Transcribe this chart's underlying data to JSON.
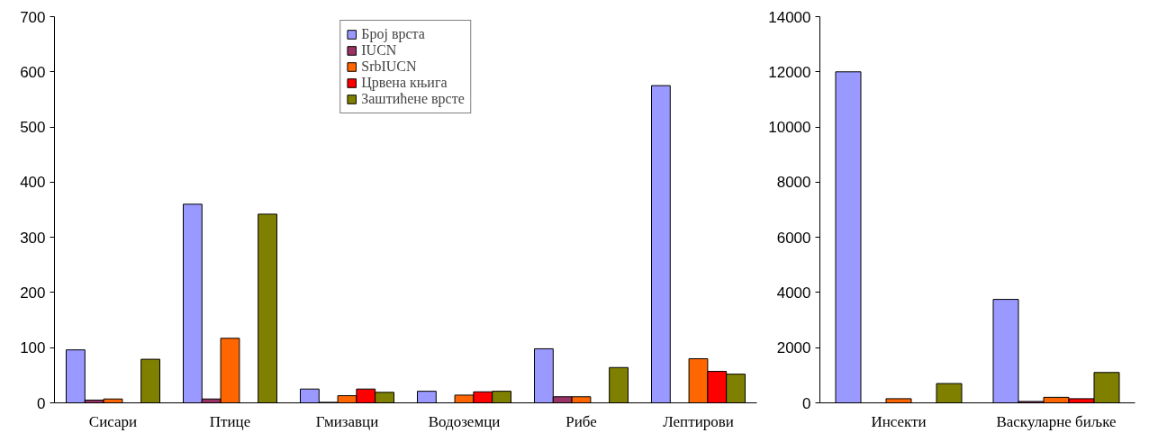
{
  "chart_data": [
    {
      "type": "bar",
      "categories": [
        "Сисари",
        "Птице",
        "Гмизавци",
        "Водоземци",
        "Рибе",
        "Лептирови"
      ],
      "ylim": [
        0,
        700
      ],
      "yticks": [
        0,
        100,
        200,
        300,
        400,
        500,
        600,
        700
      ],
      "grid": false,
      "legend": "top",
      "series": [
        {
          "name": "Број врста",
          "color": "#9999ff",
          "values": [
            96,
            360,
            25,
            21,
            98,
            575
          ]
        },
        {
          "name": "IUCN",
          "color": "#993366",
          "values": [
            5,
            7,
            1,
            null,
            11,
            null
          ]
        },
        {
          "name": "SrbIUCN",
          "color": "#ff6600",
          "values": [
            7,
            117,
            13,
            14,
            11,
            80
          ]
        },
        {
          "name": "Црвена књига",
          "color": "#ff0000",
          "values": [
            null,
            null,
            25,
            20,
            null,
            57
          ]
        },
        {
          "name": "Заштићене врсте",
          "color": "#808000",
          "values": [
            79,
            342,
            19,
            21,
            64,
            52
          ]
        }
      ]
    },
    {
      "type": "bar",
      "categories": [
        "Инсекти",
        "Васкуларне биљке"
      ],
      "ylim": [
        0,
        14000
      ],
      "yticks": [
        0,
        2000,
        4000,
        6000,
        8000,
        10000,
        12000,
        14000
      ],
      "grid": false,
      "legend": false,
      "series": [
        {
          "color": "#9999ff",
          "values": [
            12000,
            3750
          ]
        },
        {
          "color": "#993366",
          "values": [
            null,
            50
          ]
        },
        {
          "color": "#ff6600",
          "values": [
            150,
            200
          ]
        },
        {
          "color": "#ff0000",
          "values": [
            null,
            150
          ]
        },
        {
          "color": "#808000",
          "values": [
            700,
            1100
          ]
        }
      ]
    }
  ]
}
